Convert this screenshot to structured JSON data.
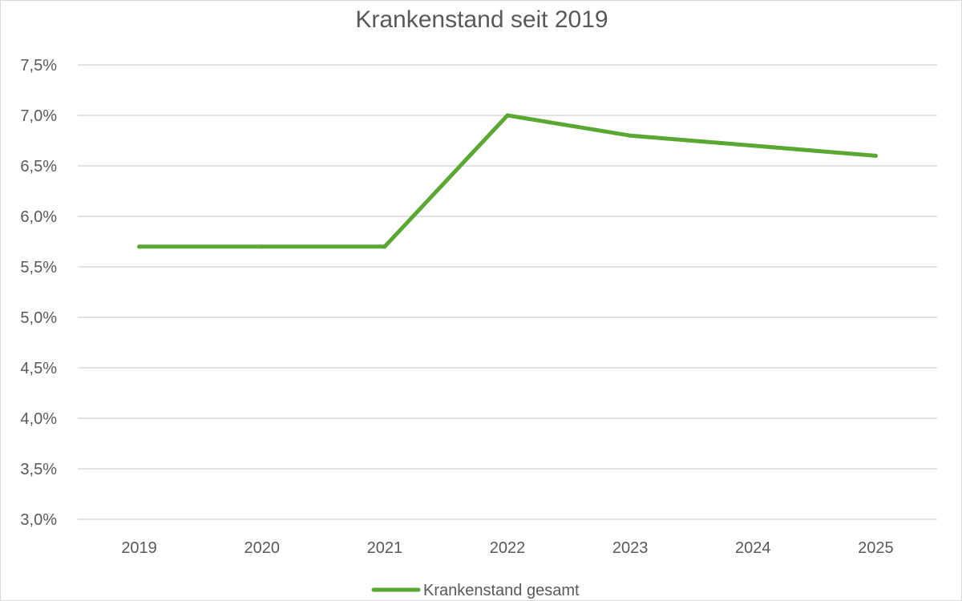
{
  "chart_data": {
    "type": "line",
    "title": "Krankenstand seit 2019",
    "xlabel": "",
    "ylabel": "",
    "categories": [
      "2019",
      "2020",
      "2021",
      "2022",
      "2023",
      "2024",
      "2025"
    ],
    "series": [
      {
        "name": "Krankenstand gesamt",
        "values": [
          5.7,
          5.7,
          5.7,
          7.0,
          6.8,
          6.7,
          6.6
        ],
        "color": "#5aa832"
      }
    ],
    "ylim": [
      3.0,
      7.5
    ],
    "yticks": [
      3.0,
      3.5,
      4.0,
      4.5,
      5.0,
      5.5,
      6.0,
      6.5,
      7.0,
      7.5
    ],
    "ytick_labels": [
      "3,0%",
      "3,5%",
      "4,0%",
      "4,5%",
      "5,0%",
      "5,5%",
      "6,0%",
      "6,5%",
      "7,0%",
      "7,5%"
    ],
    "grid": true,
    "legend_position": "bottom",
    "gridline_color": "#d9d9d9",
    "text_color": "#595959"
  }
}
